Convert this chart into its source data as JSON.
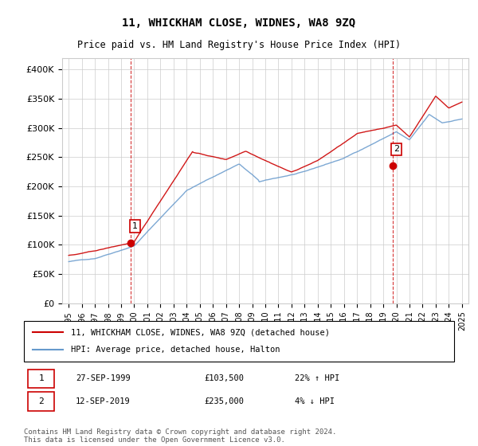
{
  "title": "11, WHICKHAM CLOSE, WIDNES, WA8 9ZQ",
  "subtitle": "Price paid vs. HM Land Registry's House Price Index (HPI)",
  "ylabel_ticks": [
    "£0",
    "£50K",
    "£100K",
    "£150K",
    "£200K",
    "£250K",
    "£300K",
    "£350K",
    "£400K"
  ],
  "ytick_values": [
    0,
    50000,
    100000,
    150000,
    200000,
    250000,
    300000,
    350000,
    400000
  ],
  "ylim": [
    0,
    420000
  ],
  "legend_line1": "11, WHICKHAM CLOSE, WIDNES, WA8 9ZQ (detached house)",
  "legend_line2": "HPI: Average price, detached house, Halton",
  "sale1_label": "1",
  "sale1_date": "27-SEP-1999",
  "sale1_price": "£103,500",
  "sale1_hpi": "22% ↑ HPI",
  "sale1_year": 1999.75,
  "sale1_value": 103500,
  "sale2_label": "2",
  "sale2_date": "12-SEP-2019",
  "sale2_price": "£235,000",
  "sale2_hpi": "4% ↓ HPI",
  "sale2_year": 2019.7,
  "sale2_value": 235000,
  "footer": "Contains HM Land Registry data © Crown copyright and database right 2024.\nThis data is licensed under the Open Government Licence v3.0.",
  "hpi_color": "#6699cc",
  "sale_color": "#cc0000",
  "vline_color": "#cc0000",
  "background_color": "#ffffff",
  "grid_color": "#cccccc"
}
